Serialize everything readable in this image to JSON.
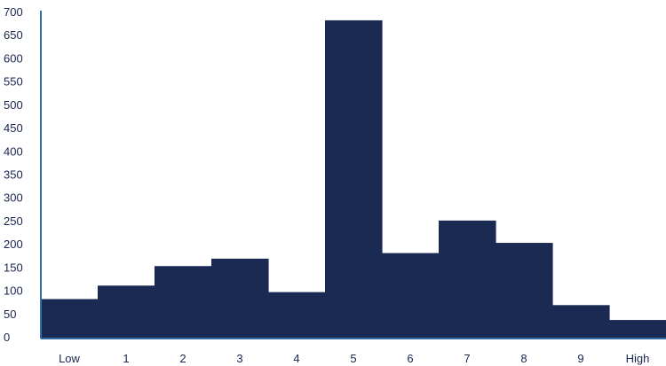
{
  "chart_data": {
    "type": "bar",
    "categories": [
      "Low",
      "1",
      "2",
      "3",
      "4",
      "5",
      "6",
      "7",
      "8",
      "9",
      "High"
    ],
    "values": [
      83,
      112,
      154,
      170,
      98,
      683,
      182,
      252,
      204,
      70,
      38
    ],
    "title": "",
    "xlabel": "",
    "ylabel": "",
    "ylim": [
      0,
      700
    ],
    "yticks": [
      0,
      50,
      100,
      150,
      200,
      250,
      300,
      350,
      400,
      450,
      500,
      550,
      600,
      650,
      700
    ],
    "grid": false,
    "bar_color": "#1a2a52",
    "axis_color": "#2f6fa3",
    "label_color": "#1a2550"
  }
}
